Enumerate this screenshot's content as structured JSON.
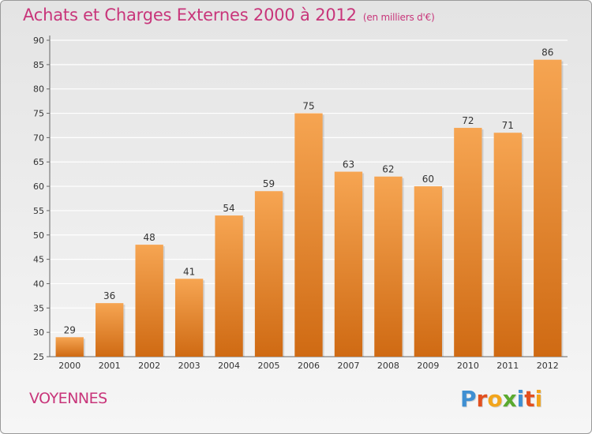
{
  "header": {
    "title": "Achats et Charges Externes 2000 à 2012",
    "subtitle": "(en milliers d'€)"
  },
  "footer": {
    "city": "VOYENNES",
    "logo_letters": [
      "P",
      "r",
      "o",
      "x",
      "i",
      "t",
      "i"
    ]
  },
  "colors": {
    "title": "#c8357a",
    "bar_top": "#f6a552",
    "bar_bottom": "#cf6a13",
    "grid": "#ffffff",
    "logo": [
      "#3f8fd2",
      "#e2501f",
      "#f2a51c",
      "#5aaa2f",
      "#3f8fd2",
      "#e2501f",
      "#f2a51c"
    ]
  },
  "chart_data": {
    "type": "bar",
    "categories": [
      "2000",
      "2001",
      "2002",
      "2003",
      "2004",
      "2005",
      "2006",
      "2007",
      "2008",
      "2009",
      "2010",
      "2011",
      "2012"
    ],
    "values": [
      29,
      36,
      48,
      41,
      54,
      59,
      75,
      63,
      62,
      60,
      72,
      71,
      86
    ],
    "data_labels": [
      "29",
      "36",
      "48",
      "41",
      "54",
      "59",
      "75",
      "63",
      "62",
      "60",
      "72",
      "71",
      "86"
    ],
    "y_ticks": [
      "25",
      "30",
      "35",
      "40",
      "45",
      "50",
      "55",
      "60",
      "65",
      "70",
      "75",
      "80",
      "85",
      "90"
    ],
    "ylim": [
      25,
      90
    ],
    "grid": true
  }
}
